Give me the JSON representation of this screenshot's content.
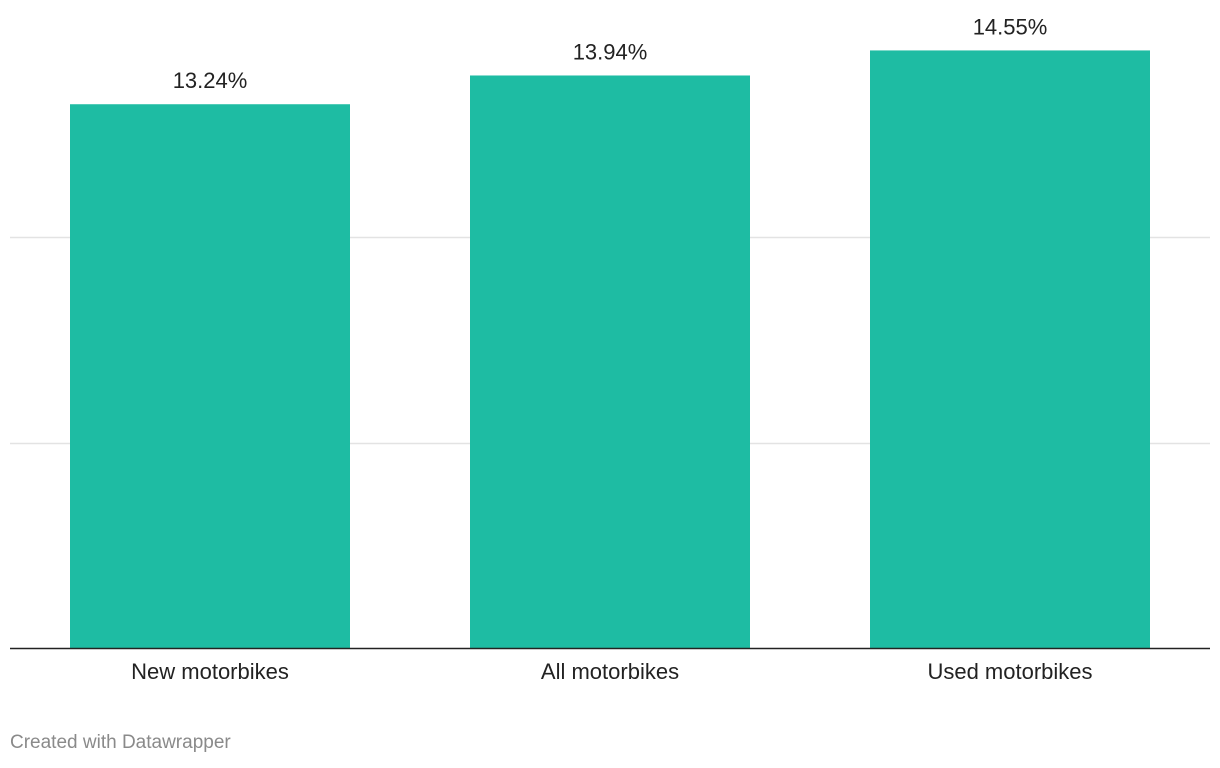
{
  "chart_data": {
    "type": "bar",
    "title": "",
    "xlabel": "",
    "ylabel": "",
    "categories": [
      "New motorbikes",
      "All motorbikes",
      "Used motorbikes"
    ],
    "values": [
      13.24,
      13.94,
      14.55
    ],
    "value_labels": [
      "13.24%",
      "13.94%",
      "14.55%"
    ],
    "ylim": [
      0,
      15
    ],
    "gridlines": [
      5,
      10
    ],
    "grid": true,
    "legend": "none",
    "bar_color": "#1ebca3",
    "gridline_color": "#e3e3e3",
    "baseline_color": "#222222"
  },
  "footer": {
    "credit": "Created with Datawrapper"
  }
}
